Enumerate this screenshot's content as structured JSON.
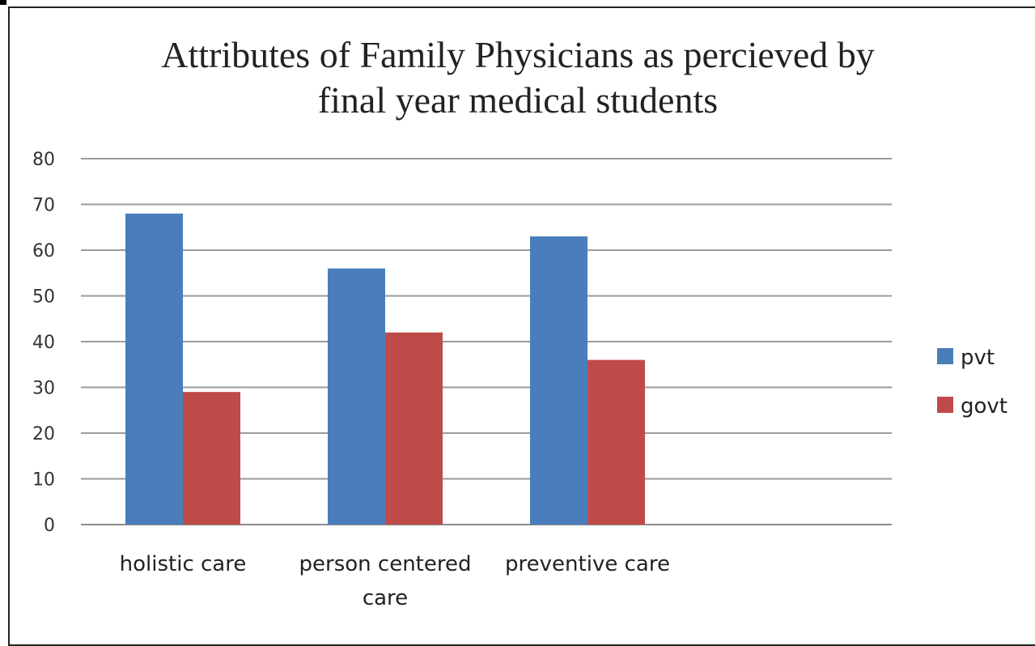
{
  "chart_data": {
    "type": "bar",
    "title_lines": [
      "Attributes of Family Physicians as percieved by",
      "final year medical students"
    ],
    "categories": [
      [
        "holistic care"
      ],
      [
        "person centered",
        "care"
      ],
      [
        "preventive care"
      ]
    ],
    "series": [
      {
        "name": "pvt",
        "values": [
          68,
          56,
          63
        ],
        "color": "#4A7EBB"
      },
      {
        "name": "govt",
        "values": [
          29,
          42,
          36
        ],
        "color": "#BE4B48"
      }
    ],
    "ylim": [
      0,
      80
    ],
    "yticks": [
      0,
      10,
      20,
      30,
      40,
      50,
      60,
      70,
      80
    ],
    "grid": true,
    "legend_position": "right"
  }
}
